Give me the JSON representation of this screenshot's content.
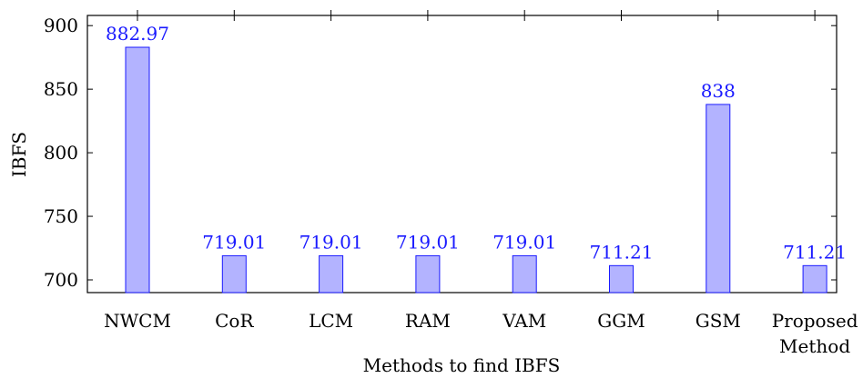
{
  "chart_data": {
    "type": "bar",
    "categories": [
      [
        "NWCM"
      ],
      [
        "CoR"
      ],
      [
        "LCM"
      ],
      [
        "RAM"
      ],
      [
        "VAM"
      ],
      [
        "GGM"
      ],
      [
        "GSM"
      ],
      [
        "Proposed",
        "Method"
      ]
    ],
    "values": [
      882.97,
      719.01,
      719.01,
      719.01,
      719.01,
      711.21,
      838,
      711.21
    ],
    "data_labels": [
      "882.97",
      "719.01",
      "719.01",
      "719.01",
      "719.01",
      "711.21",
      "838",
      "711.21"
    ],
    "xlabel": "Methods to find IBFS",
    "ylabel": "IBFS",
    "ylim": [
      690,
      908
    ],
    "yticks": [
      700,
      750,
      800,
      850,
      900
    ],
    "grid": false,
    "colors": {
      "bar_fill": "#b3b3ff",
      "bar_stroke": "#1a1aff",
      "label": "#1a1aff",
      "axis": "#000000"
    }
  }
}
